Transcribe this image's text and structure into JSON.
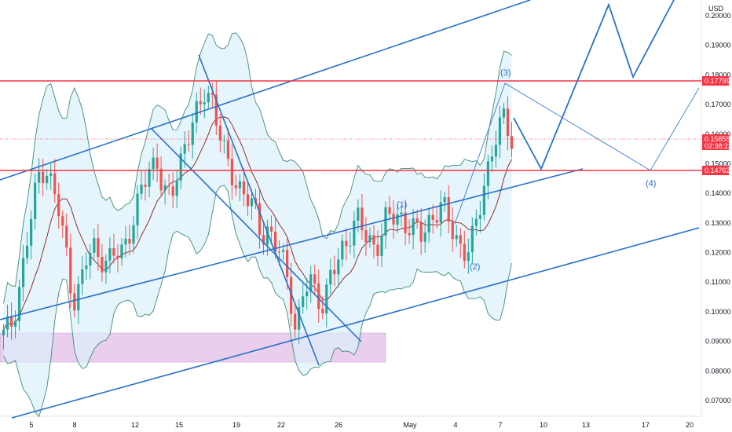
{
  "chart_data": {
    "type": "candlestick",
    "currency": "USD",
    "x_labels": [
      "5",
      "8",
      "12",
      "15",
      "19",
      "22",
      "26",
      "May",
      "4",
      "7",
      "10",
      "13",
      "17",
      "20"
    ],
    "y_ticks": [
      "0.20000",
      "0.19000",
      "0.18000",
      "0.17000",
      "0.16000",
      "0.15000",
      "0.14000",
      "0.13000",
      "0.12000",
      "0.11000",
      "0.10000",
      "0.09000",
      "0.08000",
      "0.07000"
    ],
    "price_tags": [
      {
        "label": "0.17799",
        "value": 0.17799,
        "color": "#f23645"
      },
      {
        "label": "0.15855",
        "value": 0.15855,
        "color": "#f23645",
        "countdown": "02:38:23"
      },
      {
        "label": "0.14762",
        "value": 0.14762,
        "color": "#f23645"
      }
    ],
    "horizontal_levels": [
      0.17799,
      0.14762
    ],
    "wave_labels": [
      "(1)",
      "(2)",
      "(3)",
      "(4)"
    ],
    "demand_zone": {
      "from": 0.0835,
      "to": 0.0935,
      "color": "#e1bee7"
    },
    "ohlc_close_path": [
      0.092,
      0.095,
      0.105,
      0.118,
      0.132,
      0.146,
      0.15,
      0.142,
      0.133,
      0.12,
      0.104,
      0.108,
      0.118,
      0.122,
      0.119,
      0.116,
      0.119,
      0.121,
      0.127,
      0.133,
      0.142,
      0.149,
      0.152,
      0.14,
      0.137,
      0.148,
      0.157,
      0.162,
      0.167,
      0.176,
      0.172,
      0.16,
      0.15,
      0.146,
      0.142,
      0.138,
      0.134,
      0.127,
      0.128,
      0.122,
      0.118,
      0.11,
      0.093,
      0.105,
      0.11,
      0.107,
      0.102,
      0.112,
      0.116,
      0.124,
      0.128,
      0.131,
      0.125,
      0.123,
      0.124,
      0.131,
      0.132,
      0.133,
      0.129,
      0.127,
      0.126,
      0.131,
      0.133,
      0.135,
      0.131,
      0.126,
      0.12,
      0.12,
      0.131,
      0.144,
      0.152,
      0.16,
      0.166,
      0.159
    ],
    "colors": {
      "up": "#26a69a",
      "down": "#ef5350",
      "channel": "#2872c8",
      "level": "#f23645",
      "bb_fill": "#dbeffb",
      "bb_line": "#3e8e74",
      "basis": "#8b1a1a"
    }
  }
}
